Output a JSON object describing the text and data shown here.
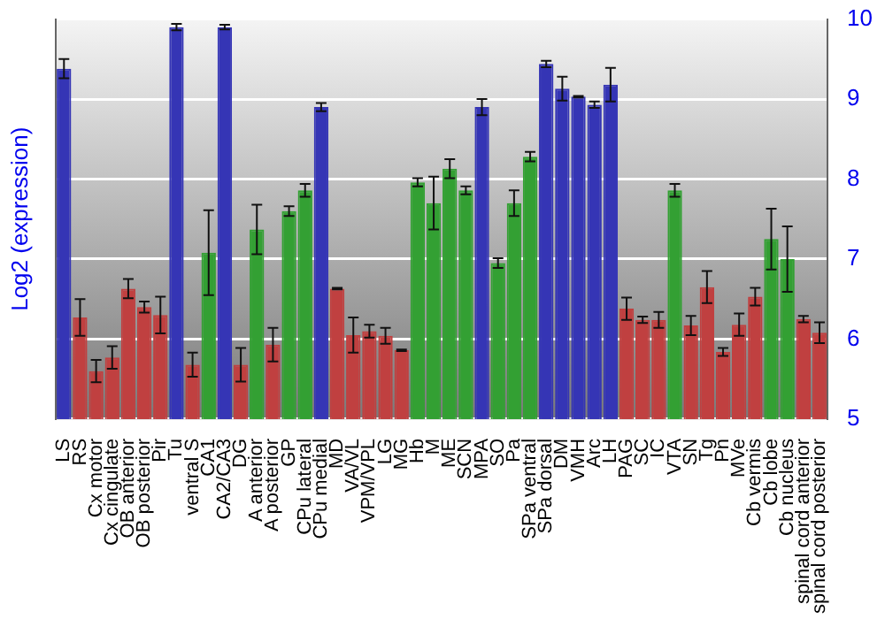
{
  "chart_data": {
    "type": "bar",
    "ylabel": "Log2 (expression)",
    "categories": [
      "LS",
      "RS",
      "Cx motor",
      "Cx cingulate",
      "OB anterior",
      "OB posterior",
      "Pir",
      "Tu",
      "ventral S",
      "CA1",
      "CA2/CA3",
      "DG",
      "A anterior",
      "A posterior",
      "GP",
      "CPu lateral",
      "CPu medial",
      "MD",
      "VA/VL",
      "VPM/VPL",
      "LG",
      "MG",
      "Hb",
      "M",
      "ME",
      "SCN",
      "MPA",
      "SO",
      "Pa",
      "SPa ventral",
      "SPa dorsal",
      "DM",
      "VMH",
      "Arc",
      "LH",
      "PAG",
      "SC",
      "IC",
      "VTA",
      "SN",
      "Tg",
      "Pn",
      "MVe",
      "Cb vermis",
      "Cb lobe",
      "Cb nucleus",
      "spinal cord anterior",
      "spinal cord posterior"
    ],
    "values": [
      9.38,
      6.27,
      5.6,
      5.77,
      6.63,
      6.4,
      6.3,
      9.9,
      5.68,
      7.08,
      9.9,
      5.68,
      7.37,
      5.93,
      7.6,
      7.86,
      8.9,
      6.63,
      6.05,
      6.1,
      6.04,
      5.86,
      7.96,
      7.7,
      8.13,
      7.86,
      8.9,
      6.95,
      7.7,
      8.28,
      9.44,
      9.13,
      9.03,
      8.93,
      9.18,
      6.38,
      6.24,
      6.24,
      7.86,
      6.17,
      6.65,
      5.84,
      6.18,
      6.53,
      7.25,
      7.0,
      6.25,
      6.08
    ],
    "errors": [
      0.12,
      0.23,
      0.14,
      0.14,
      0.12,
      0.07,
      0.23,
      0.04,
      0.15,
      0.53,
      0.03,
      0.21,
      0.31,
      0.21,
      0.06,
      0.08,
      0.05,
      0.01,
      0.22,
      0.08,
      0.1,
      0.01,
      0.05,
      0.33,
      0.12,
      0.05,
      0.1,
      0.06,
      0.16,
      0.06,
      0.04,
      0.15,
      0.01,
      0.04,
      0.21,
      0.14,
      0.04,
      0.1,
      0.08,
      0.12,
      0.2,
      0.05,
      0.14,
      0.11,
      0.38,
      0.41,
      0.04,
      0.13
    ],
    "colors": [
      "#3535b5",
      "#c04040",
      "#c04040",
      "#c04040",
      "#c04040",
      "#c04040",
      "#c04040",
      "#3535b5",
      "#c04040",
      "#33a033",
      "#3535b5",
      "#c04040",
      "#33a033",
      "#c04040",
      "#33a033",
      "#33a033",
      "#3535b5",
      "#c04040",
      "#c04040",
      "#c04040",
      "#c04040",
      "#c04040",
      "#33a033",
      "#33a033",
      "#33a033",
      "#33a033",
      "#3535b5",
      "#33a033",
      "#33a033",
      "#33a033",
      "#3535b5",
      "#3535b5",
      "#3535b5",
      "#3535b5",
      "#3535b5",
      "#c04040",
      "#c04040",
      "#c04040",
      "#33a033",
      "#c04040",
      "#c04040",
      "#c04040",
      "#c04040",
      "#c04040",
      "#33a033",
      "#33a033",
      "#c04040",
      "#c04040"
    ],
    "ylim": [
      5,
      10
    ],
    "yticks": [
      5,
      6,
      7,
      8,
      9,
      10
    ],
    "grid": "y",
    "legend": false
  }
}
